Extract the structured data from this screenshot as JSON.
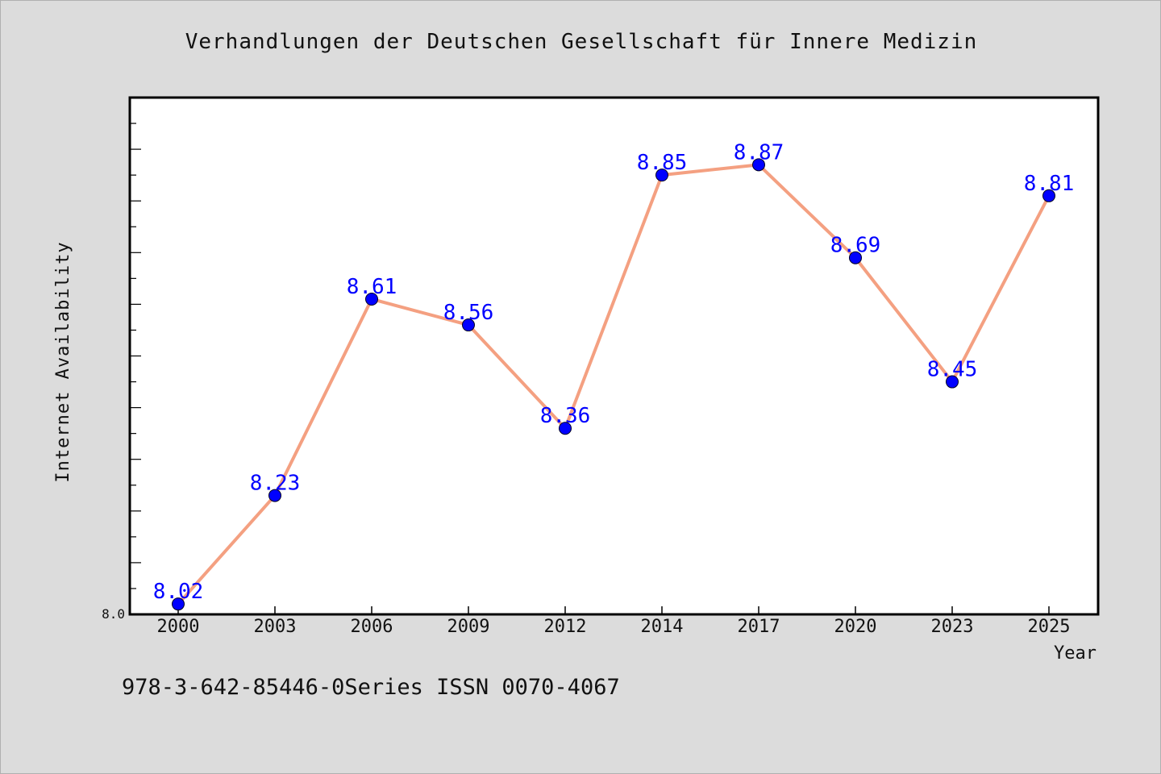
{
  "footer_note": "978-3-642-85446-0Series ISSN 0070-4067",
  "colors": {
    "background": "#dcdcdc",
    "plot_area": "#ffffff",
    "line": "#f4a081",
    "marker": "#0000ff",
    "data_label": "#0000ff",
    "text": "#111111"
  },
  "chart_data": {
    "type": "line",
    "title": "Verhandlungen der Deutschen Gesellschaft für Innere Medizin",
    "xlabel": "Year",
    "ylabel": "Internet Availability",
    "categories": [
      "2000",
      "2003",
      "2006",
      "2009",
      "2012",
      "2014",
      "2017",
      "2020",
      "2023",
      "2025"
    ],
    "series": [
      {
        "values": [
          8.02,
          8.23,
          8.61,
          8.56,
          8.36,
          8.85,
          8.87,
          8.69,
          8.45,
          8.81
        ],
        "data_labels": [
          "8.02",
          "8.23",
          "8.61",
          "8.56",
          "8.36",
          "8.85",
          "8.87",
          "8.69",
          "8.45",
          "8.81"
        ]
      }
    ],
    "ylim": [
      8.0,
      9.0
    ],
    "ytick_labels": [
      "8.0"
    ],
    "grid": false,
    "legend": "none"
  }
}
